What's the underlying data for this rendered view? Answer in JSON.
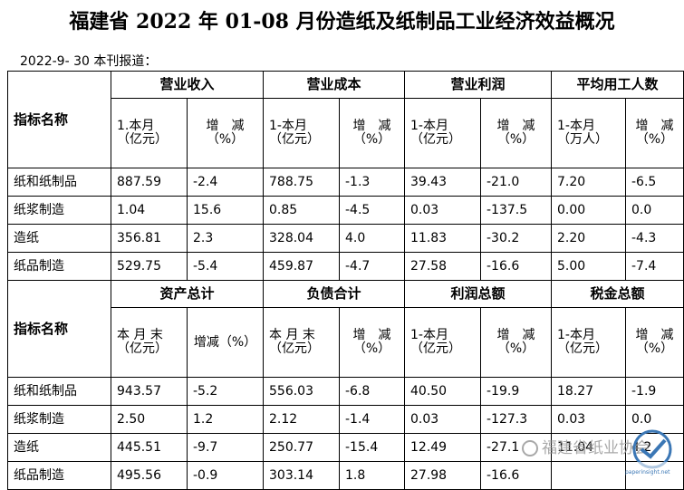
{
  "title": "福建省 2022 年 01-08 月份造纸及纸制品工业经济效益概况",
  "report_line": "2022-9- 30 本刊报道：",
  "row_label_header": "指标名称",
  "section1": {
    "groups": [
      "营业收入",
      "营业成本",
      "营业利润",
      "平均用工人数"
    ],
    "sub_headers": [
      [
        "1.本月",
        "（亿元）"
      ],
      [
        "增　减",
        "（%）"
      ],
      [
        "1-本月",
        "（亿元）"
      ],
      [
        "增　减",
        "（%）"
      ],
      [
        "1-本月",
        "（亿元）"
      ],
      [
        "增　减",
        "（%）"
      ],
      [
        "1-本月",
        "（万人）"
      ],
      [
        "增　减",
        "（%）"
      ]
    ],
    "rows": [
      {
        "name": "纸和纸制品",
        "values": [
          "887.59",
          "-2.4",
          "788.75",
          "-1.3",
          "39.43",
          "-21.0",
          "7.20",
          "-6.5"
        ]
      },
      {
        "name": "纸浆制造",
        "values": [
          "1.04",
          "15.6",
          "0.85",
          "-4.5",
          "0.03",
          "-137.5",
          "0.00",
          "0.0"
        ]
      },
      {
        "name": "造纸",
        "values": [
          "356.81",
          "2.3",
          "328.04",
          "4.0",
          "11.83",
          "-30.2",
          "2.20",
          "-4.3"
        ]
      },
      {
        "name": "纸品制造",
        "values": [
          "529.75",
          "-5.4",
          "459.87",
          "-4.7",
          "27.58",
          "-16.6",
          "5.00",
          "-7.4"
        ]
      }
    ]
  },
  "section2": {
    "groups": [
      "资产总计",
      "负债合计",
      "利润总额",
      "税金总额"
    ],
    "sub_headers": [
      [
        "本 月 末",
        "（亿元）"
      ],
      [
        "增减（%）",
        ""
      ],
      [
        "本 月 末",
        "（亿元）"
      ],
      [
        "增　减",
        "（%）"
      ],
      [
        "1-本月",
        "（亿元）"
      ],
      [
        "增　减",
        "（%）"
      ],
      [
        "1-本月",
        "（亿元）"
      ],
      [
        "增　减",
        "（%）"
      ]
    ],
    "rows": [
      {
        "name": "纸和纸制品",
        "values": [
          "943.57",
          "-5.2",
          "556.03",
          "-6.8",
          "40.50",
          "-19.9",
          "18.27",
          "-1.9"
        ]
      },
      {
        "name": "纸浆制造",
        "values": [
          "2.50",
          "1.2",
          "2.12",
          "-1.4",
          "0.03",
          "-127.3",
          "0.03",
          "0.0"
        ]
      },
      {
        "name": "造纸",
        "values": [
          "445.51",
          "-9.7",
          "250.77",
          "-15.4",
          "12.49",
          "-27.1",
          "11.04",
          "4.2"
        ]
      },
      {
        "name": "纸品制造",
        "values": [
          "495.56",
          "-0.9",
          "303.14",
          "1.8",
          "27.98",
          "-16.6",
          "",
          ""
        ]
      }
    ]
  },
  "watermark": "福建省纸业协会",
  "logo_text": "paperinsight.net",
  "colors": {
    "border": "#000000",
    "watermark": "#9a9a9a",
    "logo_blue": "#3b77b5"
  }
}
